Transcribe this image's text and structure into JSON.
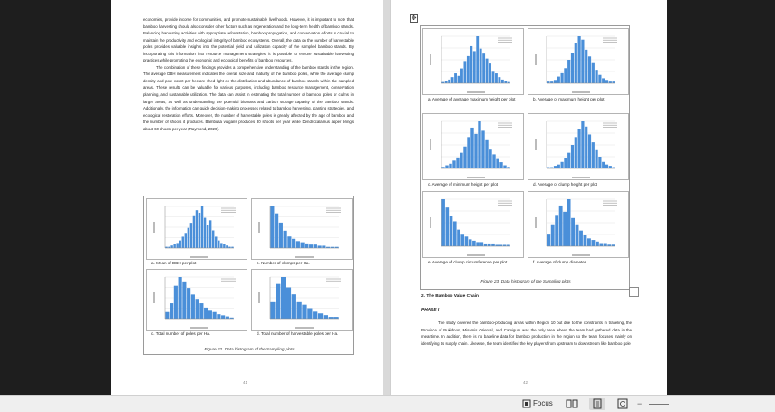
{
  "left_page": {
    "paragraph1": "economies, provide income for communities, and promote sustainable livelihoods. However, it is important to note that bamboo harvesting should also consider other factors such as regeneration and the long-term health of bamboo stands. Balancing harvesting activities with appropriate reforestation, bamboo propagation, and conservation efforts is crucial to maintain the productivity and ecological integrity of bamboo ecosystems. Overall, the data on the number of harvestable poles provides valuable insights into the potential yield and utilization capacity of the sampled bamboo stands. By incorporating this information into resource management strategies, it is possible to ensure sustainable harvesting practices while promoting the economic and ecological benefits of bamboo resources.",
    "paragraph2": "The combination of these findings provides a comprehensive understanding of the bamboo stands in the region. The average DBH measurement indicates the overall size and maturity of the bamboo poles, while the average clump density and pole count per hectare shed light on the distribution and abundance of bamboo stands within the sampled areas. These results can be valuable for various purposes, including bamboo resource management, conservation planning, and sustainable utilization. The data can assist in estimating the total number of bamboo poles or culms in larger areas, as well as understanding the potential biomass and carbon storage capacity of the bamboo stands. Additionally, the information can guide decision-making processes related to bamboo harvesting, planting strategies, and ecological restoration efforts. Moreover, the number of harvestable poles is greatly affected by the age of bamboo and the number of shoots it produces. Bambusa vulgaris produces 30 shoots per year while Dendrocalamus asper brings about 60 shoots per year (Raymond, 2020).",
    "captions": {
      "a": "a.  Mean of DBH per plot",
      "b": "b.  Number of clumps per Ha.",
      "c": "c.  Total number of poles per Ha.",
      "d": "d.  Total number of harvestable poles per Ha."
    },
    "figure_title": "Figure 22. Data histogram of the Sampling plots",
    "page_number": "41"
  },
  "right_page": {
    "captions": {
      "a": "a.  Average of average maximum height per plot",
      "b": "b.  Average of maximum height per plot",
      "c": "c.  Average of minimum height per plot",
      "d": "d.  Average of clump height per plot",
      "e": "e.  Average of clump circumference per plot",
      "f": "f.  Average of clump diameter"
    },
    "figure_title": "Figure 23. Data histogram of the Sampling plots",
    "section_heading": "2. The Bamboo Value Chain",
    "phase_heading": "PHASE I",
    "paragraph": "The study covered the bamboo-producing areas within Region 10 but due to the constraints in traveling, the Province of Bukidnon, Misamis Oriental, and Camiguin was the only area where the team had gathered data in the meantime. In addition, there is no baseline data for bamboo production in the region so the team focuses mainly on identifying its supply chain. Likewise, the team identified the key players from upstream to downstream like bamboo pole",
    "page_number": "42"
  },
  "statusbar": {
    "focus_label": "Focus",
    "icons": [
      "focus-icon",
      "read-mode-icon",
      "print-layout-icon",
      "web-layout-icon"
    ]
  },
  "colors": {
    "histogram_bar": "#4a8fd9",
    "page": "#ffffff",
    "chrome": "#1e1e1e"
  }
}
